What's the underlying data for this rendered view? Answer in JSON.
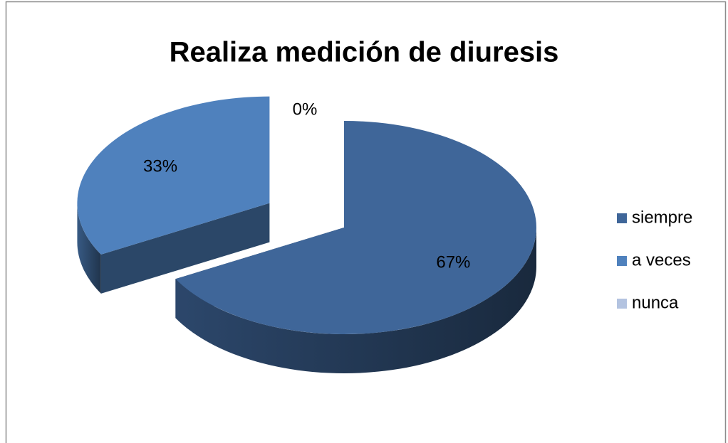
{
  "chart_data": {
    "type": "pie",
    "title": "Realiza medición de diuresis",
    "categories": [
      "siempre",
      "a veces",
      "nunca"
    ],
    "values": [
      67,
      33,
      0
    ],
    "value_labels": [
      "67%",
      "33%",
      "0%"
    ],
    "colors": [
      "#3f6699",
      "#4f81bd",
      "#b3c3e0"
    ],
    "legend": "right"
  }
}
